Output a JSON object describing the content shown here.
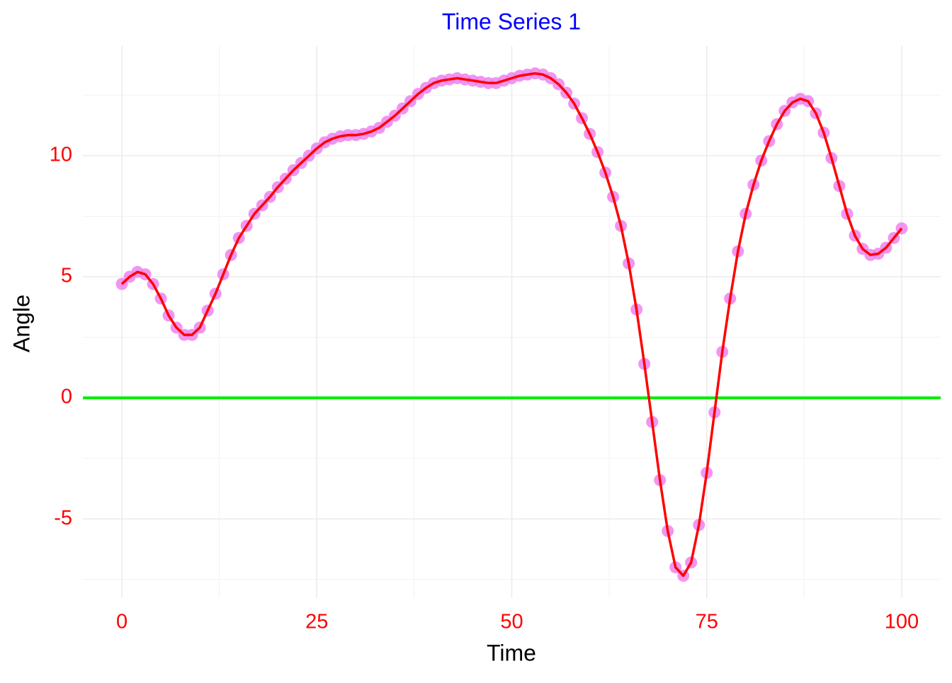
{
  "chart_data": {
    "type": "line",
    "title": "Time Series 1",
    "x_label": "Time",
    "y_label": "Angle",
    "x": [
      0,
      1,
      2,
      3,
      4,
      5,
      6,
      7,
      8,
      9,
      10,
      11,
      12,
      13,
      14,
      15,
      16,
      17,
      18,
      19,
      20,
      21,
      22,
      23,
      24,
      25,
      26,
      27,
      28,
      29,
      30,
      31,
      32,
      33,
      34,
      35,
      36,
      37,
      38,
      39,
      40,
      41,
      42,
      43,
      44,
      45,
      46,
      47,
      48,
      49,
      50,
      51,
      52,
      53,
      54,
      55,
      56,
      57,
      58,
      59,
      60,
      61,
      62,
      63,
      64,
      65,
      66,
      67,
      68,
      69,
      70,
      71,
      72,
      73,
      74,
      75,
      76,
      77,
      78,
      79,
      80,
      81,
      82,
      83,
      84,
      85,
      86,
      87,
      88,
      89,
      90,
      91,
      92,
      93,
      94,
      95,
      96,
      97,
      98,
      99,
      100
    ],
    "series": [
      {
        "color": "#ff0000",
        "point_color": "#ee82ee",
        "values": [
          4.7,
          5.0,
          5.2,
          5.1,
          4.7,
          4.1,
          3.4,
          2.9,
          2.6,
          2.6,
          2.9,
          3.6,
          4.3,
          5.1,
          5.9,
          6.6,
          7.1,
          7.6,
          7.95,
          8.3,
          8.7,
          9.05,
          9.4,
          9.7,
          10.0,
          10.3,
          10.55,
          10.7,
          10.8,
          10.85,
          10.85,
          10.9,
          11.0,
          11.15,
          11.4,
          11.65,
          11.95,
          12.25,
          12.55,
          12.8,
          13.0,
          13.1,
          13.15,
          13.2,
          13.15,
          13.1,
          13.05,
          13.0,
          13.0,
          13.1,
          13.2,
          13.3,
          13.35,
          13.4,
          13.35,
          13.2,
          12.95,
          12.6,
          12.15,
          11.55,
          10.9,
          10.15,
          9.3,
          8.3,
          7.1,
          5.55,
          3.65,
          1.4,
          -1.0,
          -3.4,
          -5.5,
          -7.0,
          -7.35,
          -6.8,
          -5.25,
          -3.1,
          -0.6,
          1.9,
          4.1,
          6.05,
          7.6,
          8.8,
          9.8,
          10.6,
          11.3,
          11.85,
          12.2,
          12.35,
          12.25,
          11.75,
          10.95,
          9.9,
          8.75,
          7.6,
          6.7,
          6.15,
          5.9,
          5.95,
          6.2,
          6.6,
          7.0
        ]
      }
    ],
    "hline": 0,
    "hline_color": "#00ee00",
    "xlim": [
      -5,
      105
    ],
    "ylim": [
      -8.27,
      14.53
    ],
    "xticks": [
      0,
      25,
      50,
      75,
      100
    ],
    "yticks": [
      -5,
      0,
      5,
      10
    ],
    "x_minor_ticks": [
      12.5,
      37.5,
      62.5,
      87.5
    ],
    "y_minor_ticks": [
      -7.5,
      -2.5,
      2.5,
      7.5,
      12.5
    ],
    "grid": true,
    "title_color": "#0000ff",
    "tick_label_color": "#ff0000"
  }
}
